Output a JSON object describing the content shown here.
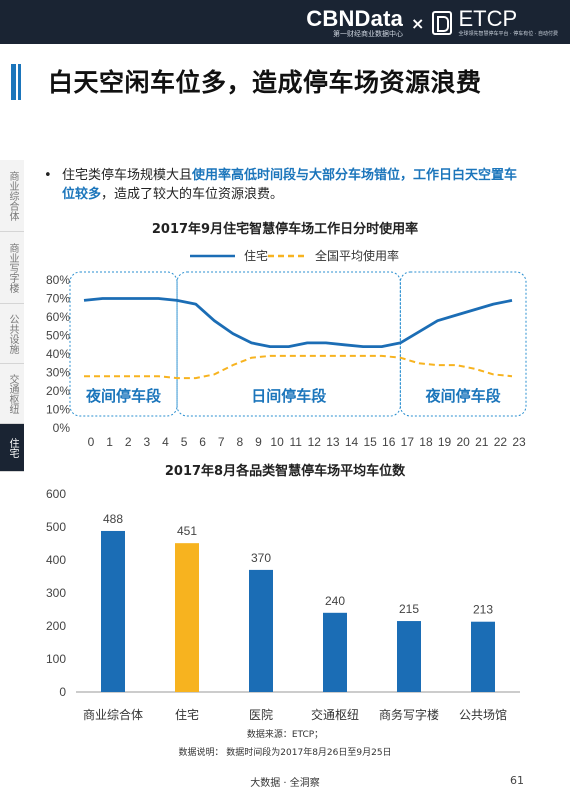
{
  "header": {
    "brand_name": "CBNData",
    "brand_sub": "第一财经商业数据中心",
    "separator": "×",
    "partner_name": "ETCP",
    "partner_sub": "全球领先智慧停车平台 · 停车有位 · 自动付费"
  },
  "page_title": "白天空闲车位多，造成停车场资源浪费",
  "side_nav": {
    "items": [
      {
        "label": "商业综合体",
        "active": false
      },
      {
        "label": "商业写字楼",
        "active": false
      },
      {
        "label": "公共设施",
        "active": false
      },
      {
        "label": "交通枢纽",
        "active": false
      },
      {
        "label": "住宅",
        "active": true
      }
    ]
  },
  "bullet": {
    "marker": "•",
    "text_before": "住宅类停车场规模大且",
    "text_highlight": "使用率高低时间段与大部分车场错位，工作日白天空置车位较多",
    "text_after": "，造成了较大的车位资源浪费。"
  },
  "chart_data": [
    {
      "type": "line",
      "title": "2017年9月住宅智慧停车场工作日分时使用率",
      "x": [
        0,
        1,
        2,
        3,
        4,
        5,
        6,
        7,
        8,
        9,
        10,
        11,
        12,
        13,
        14,
        15,
        16,
        17,
        18,
        19,
        20,
        21,
        22,
        23
      ],
      "series": [
        {
          "name": "住宅",
          "color": "#1b6db5",
          "style": "solid",
          "values": [
            0.69,
            0.7,
            0.7,
            0.7,
            0.7,
            0.69,
            0.67,
            0.58,
            0.51,
            0.46,
            0.44,
            0.44,
            0.46,
            0.46,
            0.45,
            0.44,
            0.44,
            0.46,
            0.52,
            0.58,
            0.61,
            0.64,
            0.67,
            0.69
          ]
        },
        {
          "name": "全国平均使用率",
          "color": "#f7b31f",
          "style": "dashed",
          "values": [
            0.28,
            0.28,
            0.28,
            0.28,
            0.28,
            0.27,
            0.27,
            0.29,
            0.34,
            0.38,
            0.39,
            0.39,
            0.39,
            0.39,
            0.39,
            0.39,
            0.39,
            0.38,
            0.35,
            0.34,
            0.34,
            0.32,
            0.29,
            0.28
          ]
        }
      ],
      "yticks": [
        "0%",
        "10%",
        "20%",
        "30%",
        "40%",
        "50%",
        "60%",
        "70%",
        "80%"
      ],
      "ylim": [
        0,
        0.8
      ],
      "legend_position": "top",
      "segments": [
        {
          "label": "夜间停车段",
          "from": 0,
          "to": 5
        },
        {
          "label": "日间停车段",
          "from": 5,
          "to": 17
        },
        {
          "label": "夜间停车段",
          "from": 17,
          "to": 23
        }
      ]
    },
    {
      "type": "bar",
      "title": "2017年8月各品类智慧停车场平均车位数",
      "categories": [
        "商业综合体",
        "住宅",
        "医院",
        "交通枢纽",
        "商务写字楼",
        "公共场馆"
      ],
      "values": [
        488,
        451,
        370,
        240,
        215,
        213
      ],
      "colors": [
        "#1b6db5",
        "#f7b31f",
        "#1b6db5",
        "#1b6db5",
        "#1b6db5",
        "#1b6db5"
      ],
      "yticks": [
        "0",
        "100",
        "200",
        "300",
        "400",
        "500",
        "600"
      ],
      "ylim": [
        0,
        600
      ]
    }
  ],
  "notes": {
    "source": "数据来源：ETCP；",
    "period": "数据说明：  数据时间段为2017年8月26日至9月25日"
  },
  "footer": {
    "text": "大数据 · 全洞察",
    "page_number": "61"
  },
  "colors": {
    "header_bg": "#1a2433",
    "accent_blue": "#1b75bb",
    "accent_yellow": "#f7b31f"
  }
}
